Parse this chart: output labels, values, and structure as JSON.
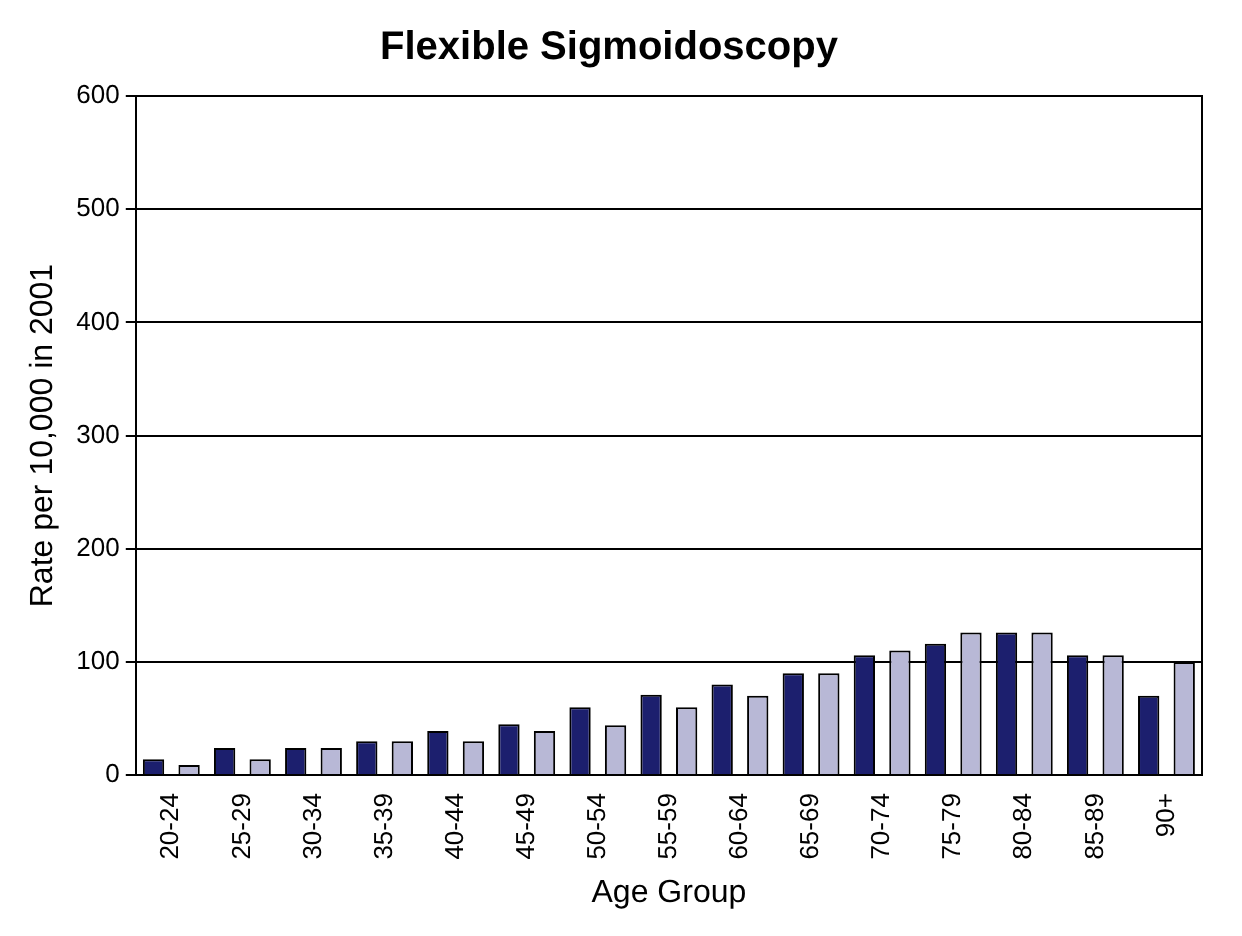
{
  "chart_data": {
    "type": "bar",
    "title": "Flexible Sigmoidoscopy",
    "xlabel": "Age Group",
    "ylabel": "Rate per 10,000 in 2001",
    "categories": [
      "20-24",
      "25-29",
      "30-34",
      "35-39",
      "40-44",
      "45-49",
      "50-54",
      "55-59",
      "60-64",
      "65-69",
      "70-74",
      "75-79",
      "80-84",
      "85-89",
      "90+"
    ],
    "series": [
      {
        "color": "#1c1f6e",
        "values": [
          14,
          24,
          24,
          30,
          39,
          45,
          60,
          71,
          80,
          90,
          106,
          116,
          126,
          106,
          70
        ]
      },
      {
        "color": "#b8b8d6",
        "values": [
          9,
          14,
          24,
          30,
          30,
          39,
          44,
          60,
          70,
          90,
          110,
          126,
          126,
          106,
          100
        ]
      }
    ],
    "ylim": [
      0,
      600
    ],
    "yticks": [
      0,
      100,
      200,
      300,
      400,
      500,
      600
    ],
    "grid": "y",
    "legend": false
  }
}
